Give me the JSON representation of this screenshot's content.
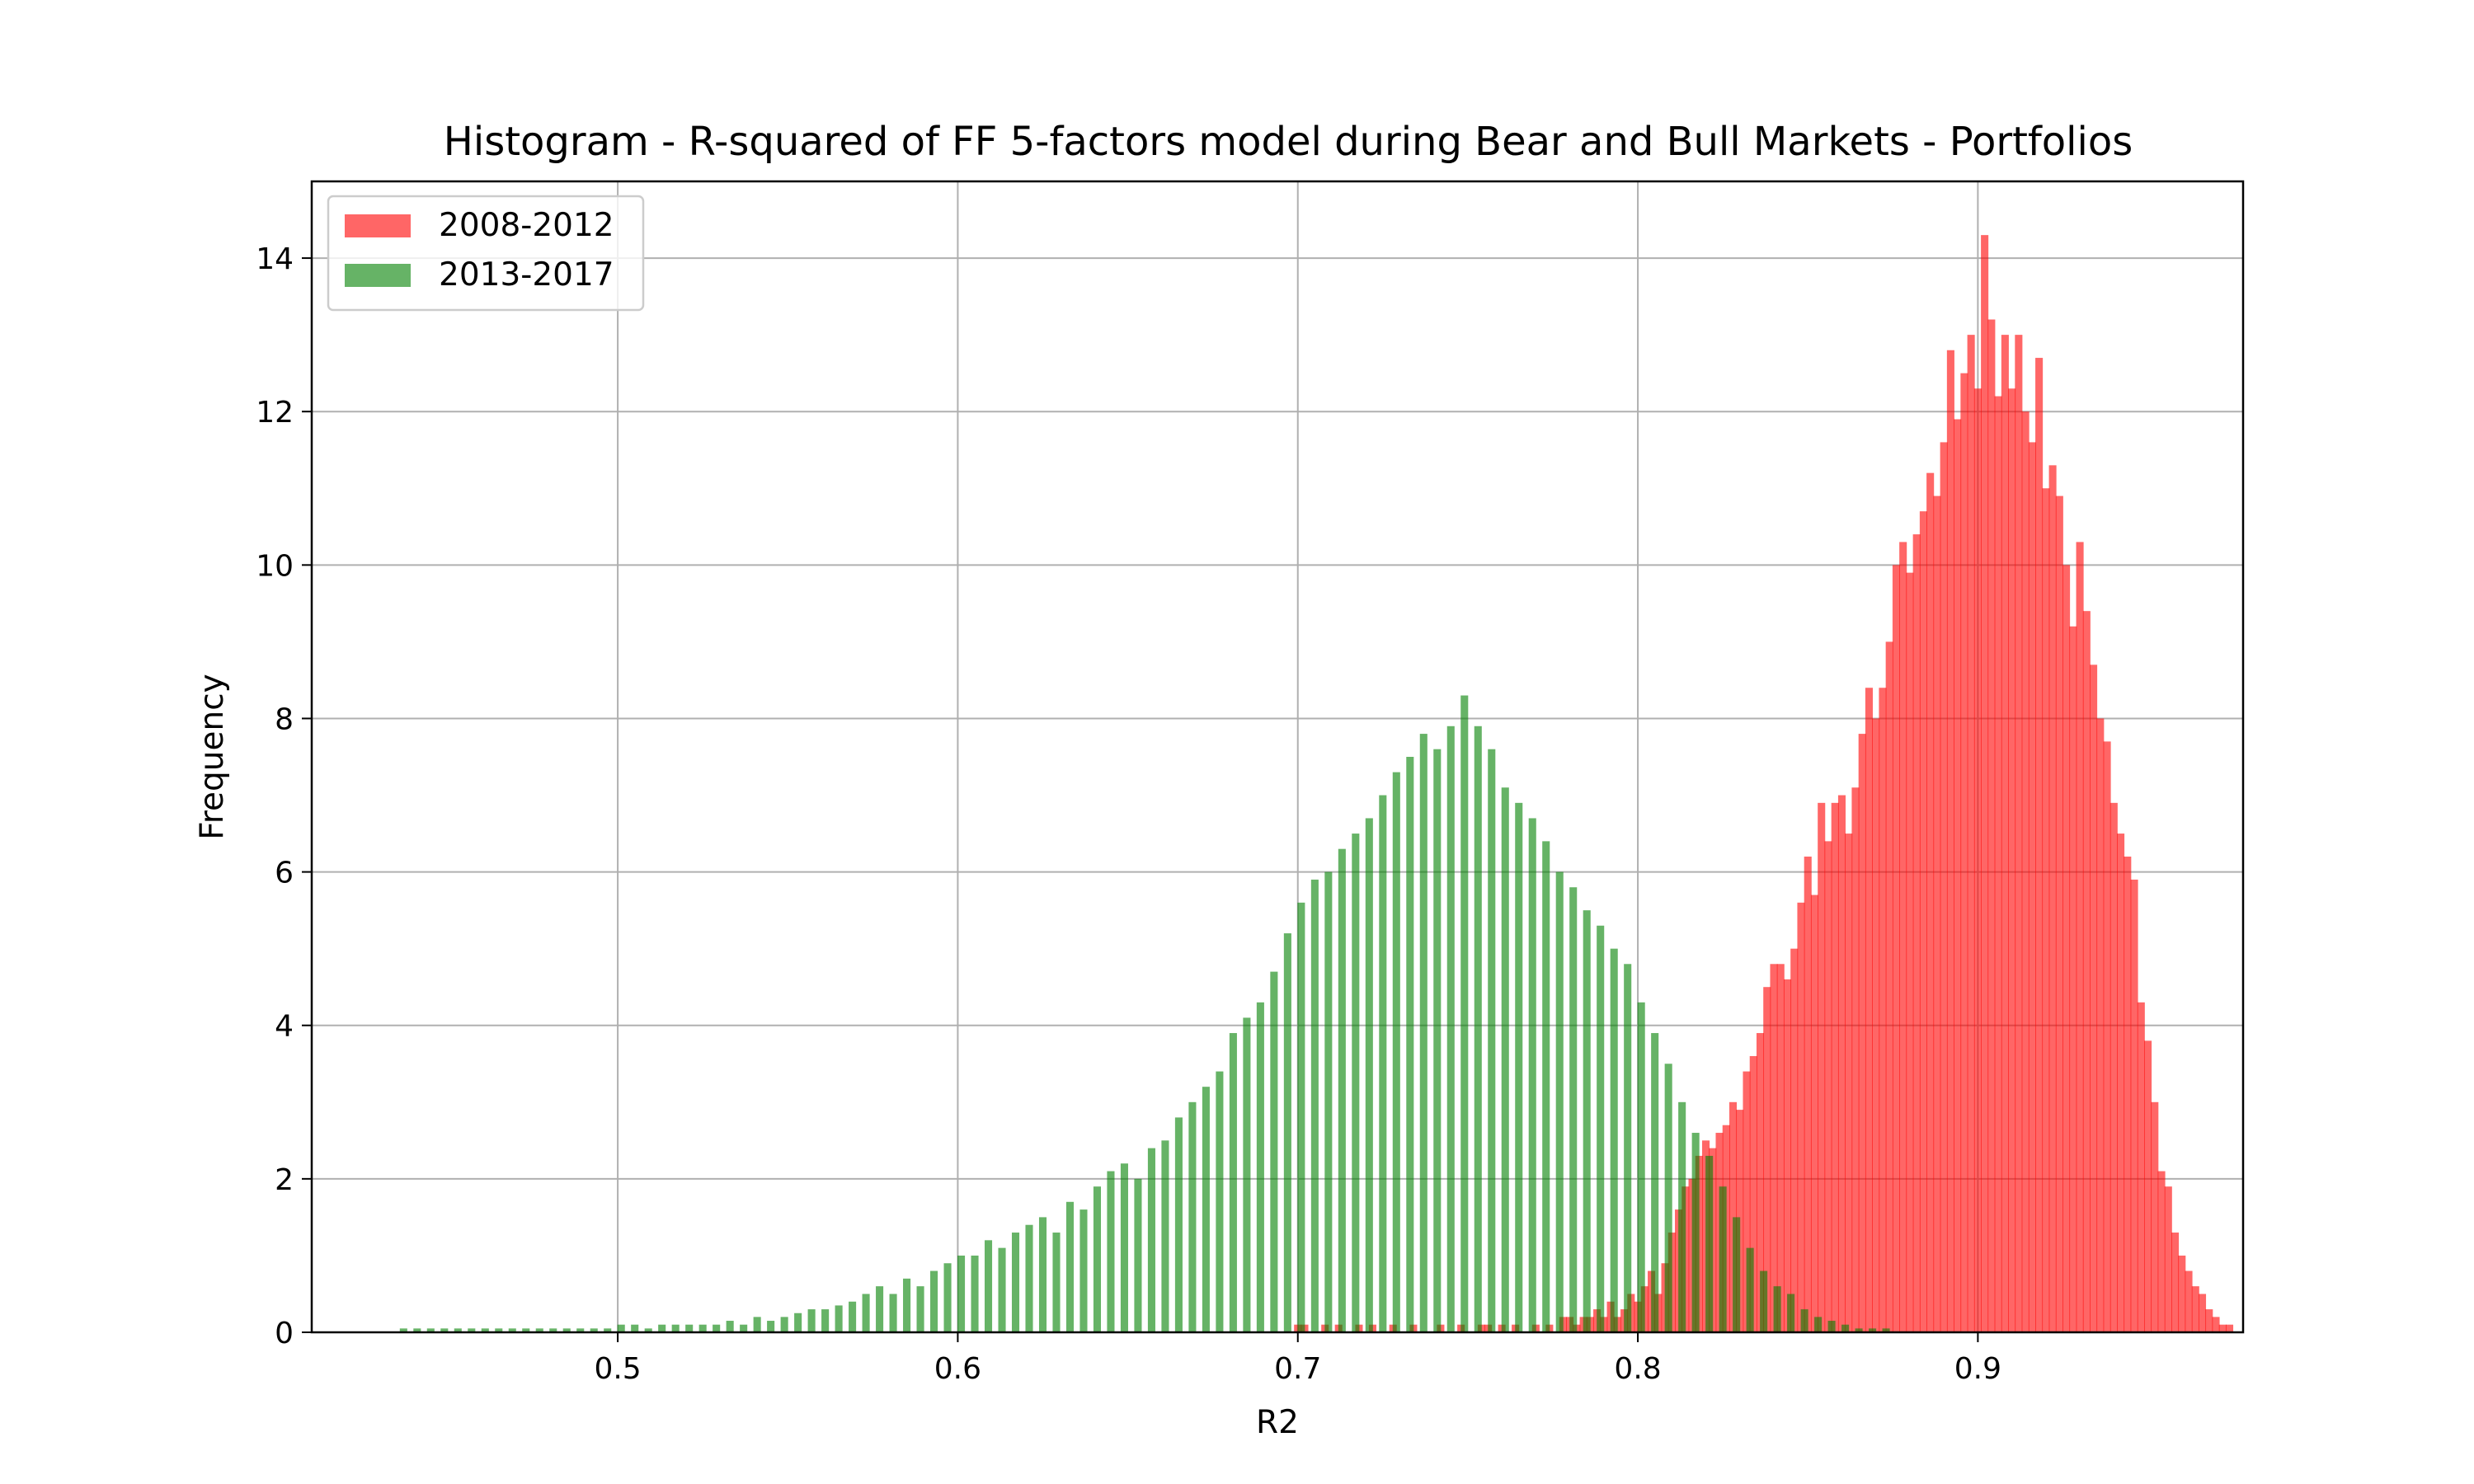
{
  "chart_data": {
    "type": "bar",
    "subtype": "overlapping histogram",
    "title": "Histogram - R-squared of FF 5-factors model during Bear and Bull Markets - Portfolios",
    "xlabel": "R2",
    "ylabel": "Frequency",
    "xlim": [
      0.41,
      0.978
    ],
    "ylim": [
      0,
      15
    ],
    "xticks": [
      {
        "value": 0.5,
        "label": "0.5"
      },
      {
        "value": 0.6,
        "label": "0.6"
      },
      {
        "value": 0.7,
        "label": "0.7"
      },
      {
        "value": 0.8,
        "label": "0.8"
      },
      {
        "value": 0.9,
        "label": "0.9"
      }
    ],
    "yticks": [
      {
        "value": 0,
        "label": "0"
      },
      {
        "value": 2,
        "label": "2"
      },
      {
        "value": 4,
        "label": "4"
      },
      {
        "value": 6,
        "label": "6"
      },
      {
        "value": 8,
        "label": "8"
      },
      {
        "value": 10,
        "label": "10"
      },
      {
        "value": 12,
        "label": "12"
      },
      {
        "value": 14,
        "label": "14"
      }
    ],
    "grid": true,
    "legend_position": "top-left",
    "series": [
      {
        "name": "2008-2012",
        "color": "#ff0000",
        "alpha": 0.6,
        "bin_width": 0.0022,
        "bins": [
          [
            0.7,
            0.1
          ],
          [
            0.702,
            0.1
          ],
          [
            0.708,
            0.1
          ],
          [
            0.712,
            0.1
          ],
          [
            0.718,
            0.1
          ],
          [
            0.722,
            0.1
          ],
          [
            0.728,
            0.1
          ],
          [
            0.734,
            0.1
          ],
          [
            0.742,
            0.1
          ],
          [
            0.748,
            0.1
          ],
          [
            0.754,
            0.1
          ],
          [
            0.756,
            0.1
          ],
          [
            0.76,
            0.1
          ],
          [
            0.764,
            0.1
          ],
          [
            0.77,
            0.1
          ],
          [
            0.774,
            0.1
          ],
          [
            0.778,
            0.2
          ],
          [
            0.78,
            0.2
          ],
          [
            0.782,
            0.1
          ],
          [
            0.784,
            0.2
          ],
          [
            0.786,
            0.2
          ],
          [
            0.788,
            0.3
          ],
          [
            0.79,
            0.2
          ],
          [
            0.792,
            0.4
          ],
          [
            0.794,
            0.2
          ],
          [
            0.796,
            0.3
          ],
          [
            0.798,
            0.5
          ],
          [
            0.8,
            0.4
          ],
          [
            0.802,
            0.6
          ],
          [
            0.804,
            0.8
          ],
          [
            0.806,
            0.5
          ],
          [
            0.808,
            0.9
          ],
          [
            0.81,
            1.3
          ],
          [
            0.812,
            1.6
          ],
          [
            0.814,
            1.9
          ],
          [
            0.816,
            2.0
          ],
          [
            0.818,
            2.3
          ],
          [
            0.82,
            2.5
          ],
          [
            0.822,
            2.4
          ],
          [
            0.824,
            2.6
          ],
          [
            0.826,
            2.7
          ],
          [
            0.828,
            3.0
          ],
          [
            0.83,
            2.9
          ],
          [
            0.832,
            3.4
          ],
          [
            0.834,
            3.6
          ],
          [
            0.836,
            3.9
          ],
          [
            0.838,
            4.5
          ],
          [
            0.84,
            4.8
          ],
          [
            0.842,
            4.8
          ],
          [
            0.844,
            4.6
          ],
          [
            0.846,
            5.0
          ],
          [
            0.848,
            5.6
          ],
          [
            0.85,
            6.2
          ],
          [
            0.852,
            5.7
          ],
          [
            0.854,
            6.9
          ],
          [
            0.856,
            6.4
          ],
          [
            0.858,
            6.9
          ],
          [
            0.86,
            7.0
          ],
          [
            0.862,
            6.5
          ],
          [
            0.864,
            7.1
          ],
          [
            0.866,
            7.8
          ],
          [
            0.868,
            8.4
          ],
          [
            0.87,
            8.0
          ],
          [
            0.872,
            8.4
          ],
          [
            0.874,
            9.0
          ],
          [
            0.876,
            10.0
          ],
          [
            0.878,
            10.3
          ],
          [
            0.88,
            9.9
          ],
          [
            0.882,
            10.4
          ],
          [
            0.884,
            10.7
          ],
          [
            0.886,
            11.2
          ],
          [
            0.888,
            10.9
          ],
          [
            0.89,
            11.6
          ],
          [
            0.892,
            12.8
          ],
          [
            0.894,
            11.9
          ],
          [
            0.896,
            12.5
          ],
          [
            0.898,
            13.0
          ],
          [
            0.9,
            12.3
          ],
          [
            0.902,
            14.3
          ],
          [
            0.904,
            13.2
          ],
          [
            0.906,
            12.2
          ],
          [
            0.908,
            13.0
          ],
          [
            0.91,
            12.3
          ],
          [
            0.912,
            13.0
          ],
          [
            0.914,
            12.0
          ],
          [
            0.916,
            11.6
          ],
          [
            0.918,
            12.7
          ],
          [
            0.92,
            11.0
          ],
          [
            0.922,
            11.3
          ],
          [
            0.924,
            10.9
          ],
          [
            0.926,
            10.0
          ],
          [
            0.928,
            9.2
          ],
          [
            0.93,
            10.3
          ],
          [
            0.932,
            9.4
          ],
          [
            0.934,
            8.7
          ],
          [
            0.936,
            8.0
          ],
          [
            0.938,
            7.7
          ],
          [
            0.94,
            6.9
          ],
          [
            0.942,
            6.5
          ],
          [
            0.944,
            6.2
          ],
          [
            0.946,
            5.9
          ],
          [
            0.948,
            4.3
          ],
          [
            0.95,
            3.8
          ],
          [
            0.952,
            3.0
          ],
          [
            0.954,
            2.1
          ],
          [
            0.956,
            1.9
          ],
          [
            0.958,
            1.3
          ],
          [
            0.96,
            1.0
          ],
          [
            0.962,
            0.8
          ],
          [
            0.964,
            0.6
          ],
          [
            0.966,
            0.5
          ],
          [
            0.968,
            0.3
          ],
          [
            0.97,
            0.2
          ],
          [
            0.972,
            0.1
          ],
          [
            0.974,
            0.1
          ]
        ]
      },
      {
        "name": "2013-2017",
        "color": "#008000",
        "alpha": 0.6,
        "bin_width": 0.0022,
        "bins": [
          [
            0.437,
            0.05
          ],
          [
            0.441,
            0.05
          ],
          [
            0.445,
            0.05
          ],
          [
            0.449,
            0.05
          ],
          [
            0.453,
            0.05
          ],
          [
            0.457,
            0.05
          ],
          [
            0.461,
            0.05
          ],
          [
            0.465,
            0.05
          ],
          [
            0.469,
            0.05
          ],
          [
            0.473,
            0.05
          ],
          [
            0.477,
            0.05
          ],
          [
            0.481,
            0.05
          ],
          [
            0.485,
            0.05
          ],
          [
            0.489,
            0.05
          ],
          [
            0.493,
            0.05
          ],
          [
            0.497,
            0.05
          ],
          [
            0.501,
            0.1
          ],
          [
            0.505,
            0.1
          ],
          [
            0.509,
            0.05
          ],
          [
            0.513,
            0.1
          ],
          [
            0.517,
            0.1
          ],
          [
            0.521,
            0.1
          ],
          [
            0.525,
            0.1
          ],
          [
            0.529,
            0.1
          ],
          [
            0.533,
            0.15
          ],
          [
            0.537,
            0.1
          ],
          [
            0.541,
            0.2
          ],
          [
            0.545,
            0.15
          ],
          [
            0.549,
            0.2
          ],
          [
            0.553,
            0.25
          ],
          [
            0.557,
            0.3
          ],
          [
            0.561,
            0.3
          ],
          [
            0.565,
            0.35
          ],
          [
            0.569,
            0.4
          ],
          [
            0.573,
            0.5
          ],
          [
            0.577,
            0.6
          ],
          [
            0.581,
            0.5
          ],
          [
            0.585,
            0.7
          ],
          [
            0.589,
            0.6
          ],
          [
            0.593,
            0.8
          ],
          [
            0.597,
            0.9
          ],
          [
            0.601,
            1.0
          ],
          [
            0.605,
            1.0
          ],
          [
            0.609,
            1.2
          ],
          [
            0.613,
            1.1
          ],
          [
            0.617,
            1.3
          ],
          [
            0.621,
            1.4
          ],
          [
            0.625,
            1.5
          ],
          [
            0.629,
            1.3
          ],
          [
            0.633,
            1.7
          ],
          [
            0.637,
            1.6
          ],
          [
            0.641,
            1.9
          ],
          [
            0.645,
            2.1
          ],
          [
            0.649,
            2.2
          ],
          [
            0.653,
            2.0
          ],
          [
            0.657,
            2.4
          ],
          [
            0.661,
            2.5
          ],
          [
            0.665,
            2.8
          ],
          [
            0.669,
            3.0
          ],
          [
            0.673,
            3.2
          ],
          [
            0.677,
            3.4
          ],
          [
            0.681,
            3.9
          ],
          [
            0.685,
            4.1
          ],
          [
            0.689,
            4.3
          ],
          [
            0.693,
            4.7
          ],
          [
            0.697,
            5.2
          ],
          [
            0.701,
            5.6
          ],
          [
            0.705,
            5.9
          ],
          [
            0.709,
            6.0
          ],
          [
            0.713,
            6.3
          ],
          [
            0.717,
            6.5
          ],
          [
            0.721,
            6.7
          ],
          [
            0.725,
            7.0
          ],
          [
            0.729,
            7.3
          ],
          [
            0.733,
            7.5
          ],
          [
            0.737,
            7.8
          ],
          [
            0.741,
            7.6
          ],
          [
            0.745,
            7.9
          ],
          [
            0.749,
            8.3
          ],
          [
            0.753,
            7.9
          ],
          [
            0.757,
            7.6
          ],
          [
            0.761,
            7.1
          ],
          [
            0.765,
            6.9
          ],
          [
            0.769,
            6.7
          ],
          [
            0.773,
            6.4
          ],
          [
            0.777,
            6.0
          ],
          [
            0.781,
            5.8
          ],
          [
            0.785,
            5.5
          ],
          [
            0.789,
            5.3
          ],
          [
            0.793,
            5.0
          ],
          [
            0.797,
            4.8
          ],
          [
            0.801,
            4.3
          ],
          [
            0.805,
            3.9
          ],
          [
            0.809,
            3.5
          ],
          [
            0.813,
            3.0
          ],
          [
            0.817,
            2.6
          ],
          [
            0.821,
            2.3
          ],
          [
            0.825,
            1.9
          ],
          [
            0.829,
            1.5
          ],
          [
            0.833,
            1.1
          ],
          [
            0.837,
            0.8
          ],
          [
            0.841,
            0.6
          ],
          [
            0.845,
            0.5
          ],
          [
            0.849,
            0.3
          ],
          [
            0.853,
            0.2
          ],
          [
            0.857,
            0.15
          ],
          [
            0.861,
            0.1
          ],
          [
            0.865,
            0.05
          ],
          [
            0.869,
            0.05
          ],
          [
            0.873,
            0.05
          ]
        ]
      }
    ]
  }
}
